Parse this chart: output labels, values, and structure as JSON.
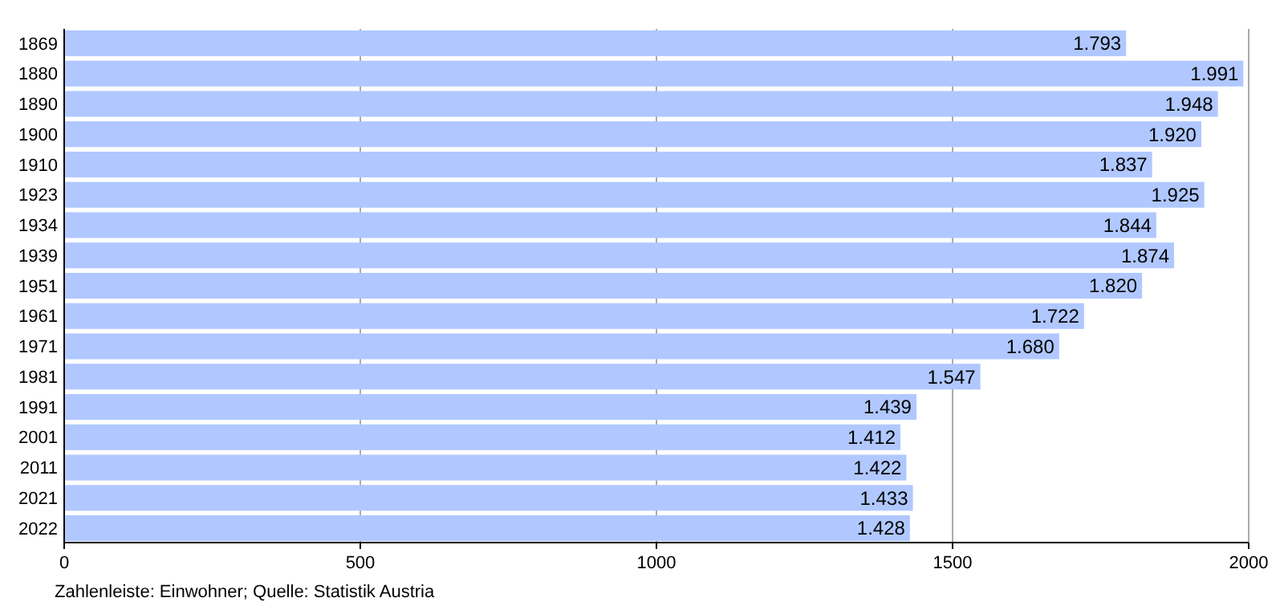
{
  "chart_data": {
    "type": "bar",
    "orientation": "horizontal",
    "categories": [
      "1869",
      "1880",
      "1890",
      "1900",
      "1910",
      "1923",
      "1934",
      "1939",
      "1951",
      "1961",
      "1971",
      "1981",
      "1991",
      "2001",
      "2011",
      "2021",
      "2022"
    ],
    "values": [
      1793,
      1991,
      1948,
      1920,
      1837,
      1925,
      1844,
      1874,
      1820,
      1722,
      1680,
      1547,
      1439,
      1412,
      1422,
      1433,
      1428
    ],
    "value_labels": [
      "1.793",
      "1.991",
      "1.948",
      "1.920",
      "1.837",
      "1.925",
      "1.844",
      "1.874",
      "1.820",
      "1.722",
      "1.680",
      "1.547",
      "1.439",
      "1.412",
      "1.422",
      "1.433",
      "1.428"
    ],
    "color": "#b0c8ff",
    "xlim": [
      0,
      2000
    ],
    "xticks": [
      0,
      500,
      1000,
      1500,
      2000
    ],
    "grid": "x",
    "annotations": [
      "Zahlenleiste: Einwohner; Quelle: Statistik Austria"
    ]
  }
}
